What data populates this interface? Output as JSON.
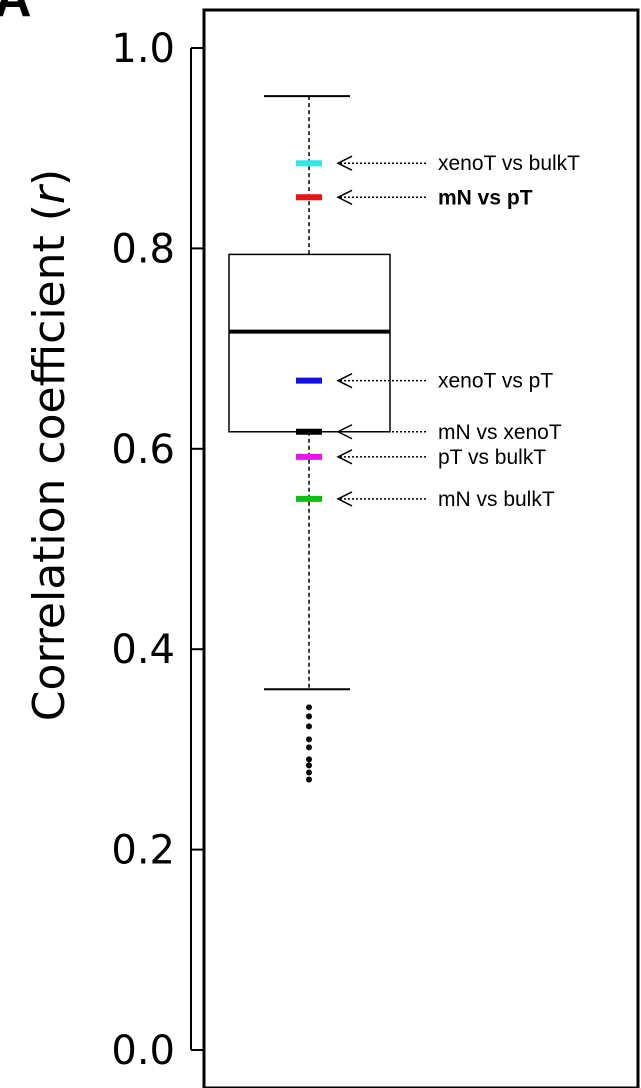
{
  "panel_letter": "A",
  "chart_data": {
    "type": "boxplot",
    "ylabel_main": "Correlation coefficient (",
    "ylabel_var": "r",
    "ylabel_close": ")",
    "ylim": [
      0,
      1.0
    ],
    "yticks": [
      {
        "value": 0.0,
        "label": "0.0"
      },
      {
        "value": 0.2,
        "label": "0.2"
      },
      {
        "value": 0.4,
        "label": "0.4"
      },
      {
        "value": 0.6,
        "label": "0.6"
      },
      {
        "value": 0.8,
        "label": "0.8"
      },
      {
        "value": 1.0,
        "label": "1.0"
      }
    ],
    "grid": false,
    "box": {
      "whisker_low": 0.36,
      "q1": 0.617,
      "median": 0.717,
      "q3": 0.794,
      "whisker_high": 0.952,
      "outliers": [
        0.342,
        0.333,
        0.323,
        0.31,
        0.302,
        0.29,
        0.284,
        0.277,
        0.27
      ]
    },
    "annotations": [
      {
        "label": "xenoT vs bulkT",
        "value": 0.885,
        "color": "#33e6e6",
        "bold": false
      },
      {
        "label": "mN vs pT",
        "value": 0.851,
        "color": "#ee1111",
        "bold": true
      },
      {
        "label": "xenoT vs pT",
        "value": 0.668,
        "color": "#1111ee",
        "bold": false
      },
      {
        "label": "mN vs xenoT",
        "value": 0.617,
        "color": "#000000",
        "bold": false
      },
      {
        "label": "pT vs bulkT",
        "value": 0.592,
        "color": "#ee11ee",
        "bold": false
      },
      {
        "label": "mN vs bulkT",
        "value": 0.55,
        "color": "#11bb11",
        "bold": false
      }
    ]
  }
}
